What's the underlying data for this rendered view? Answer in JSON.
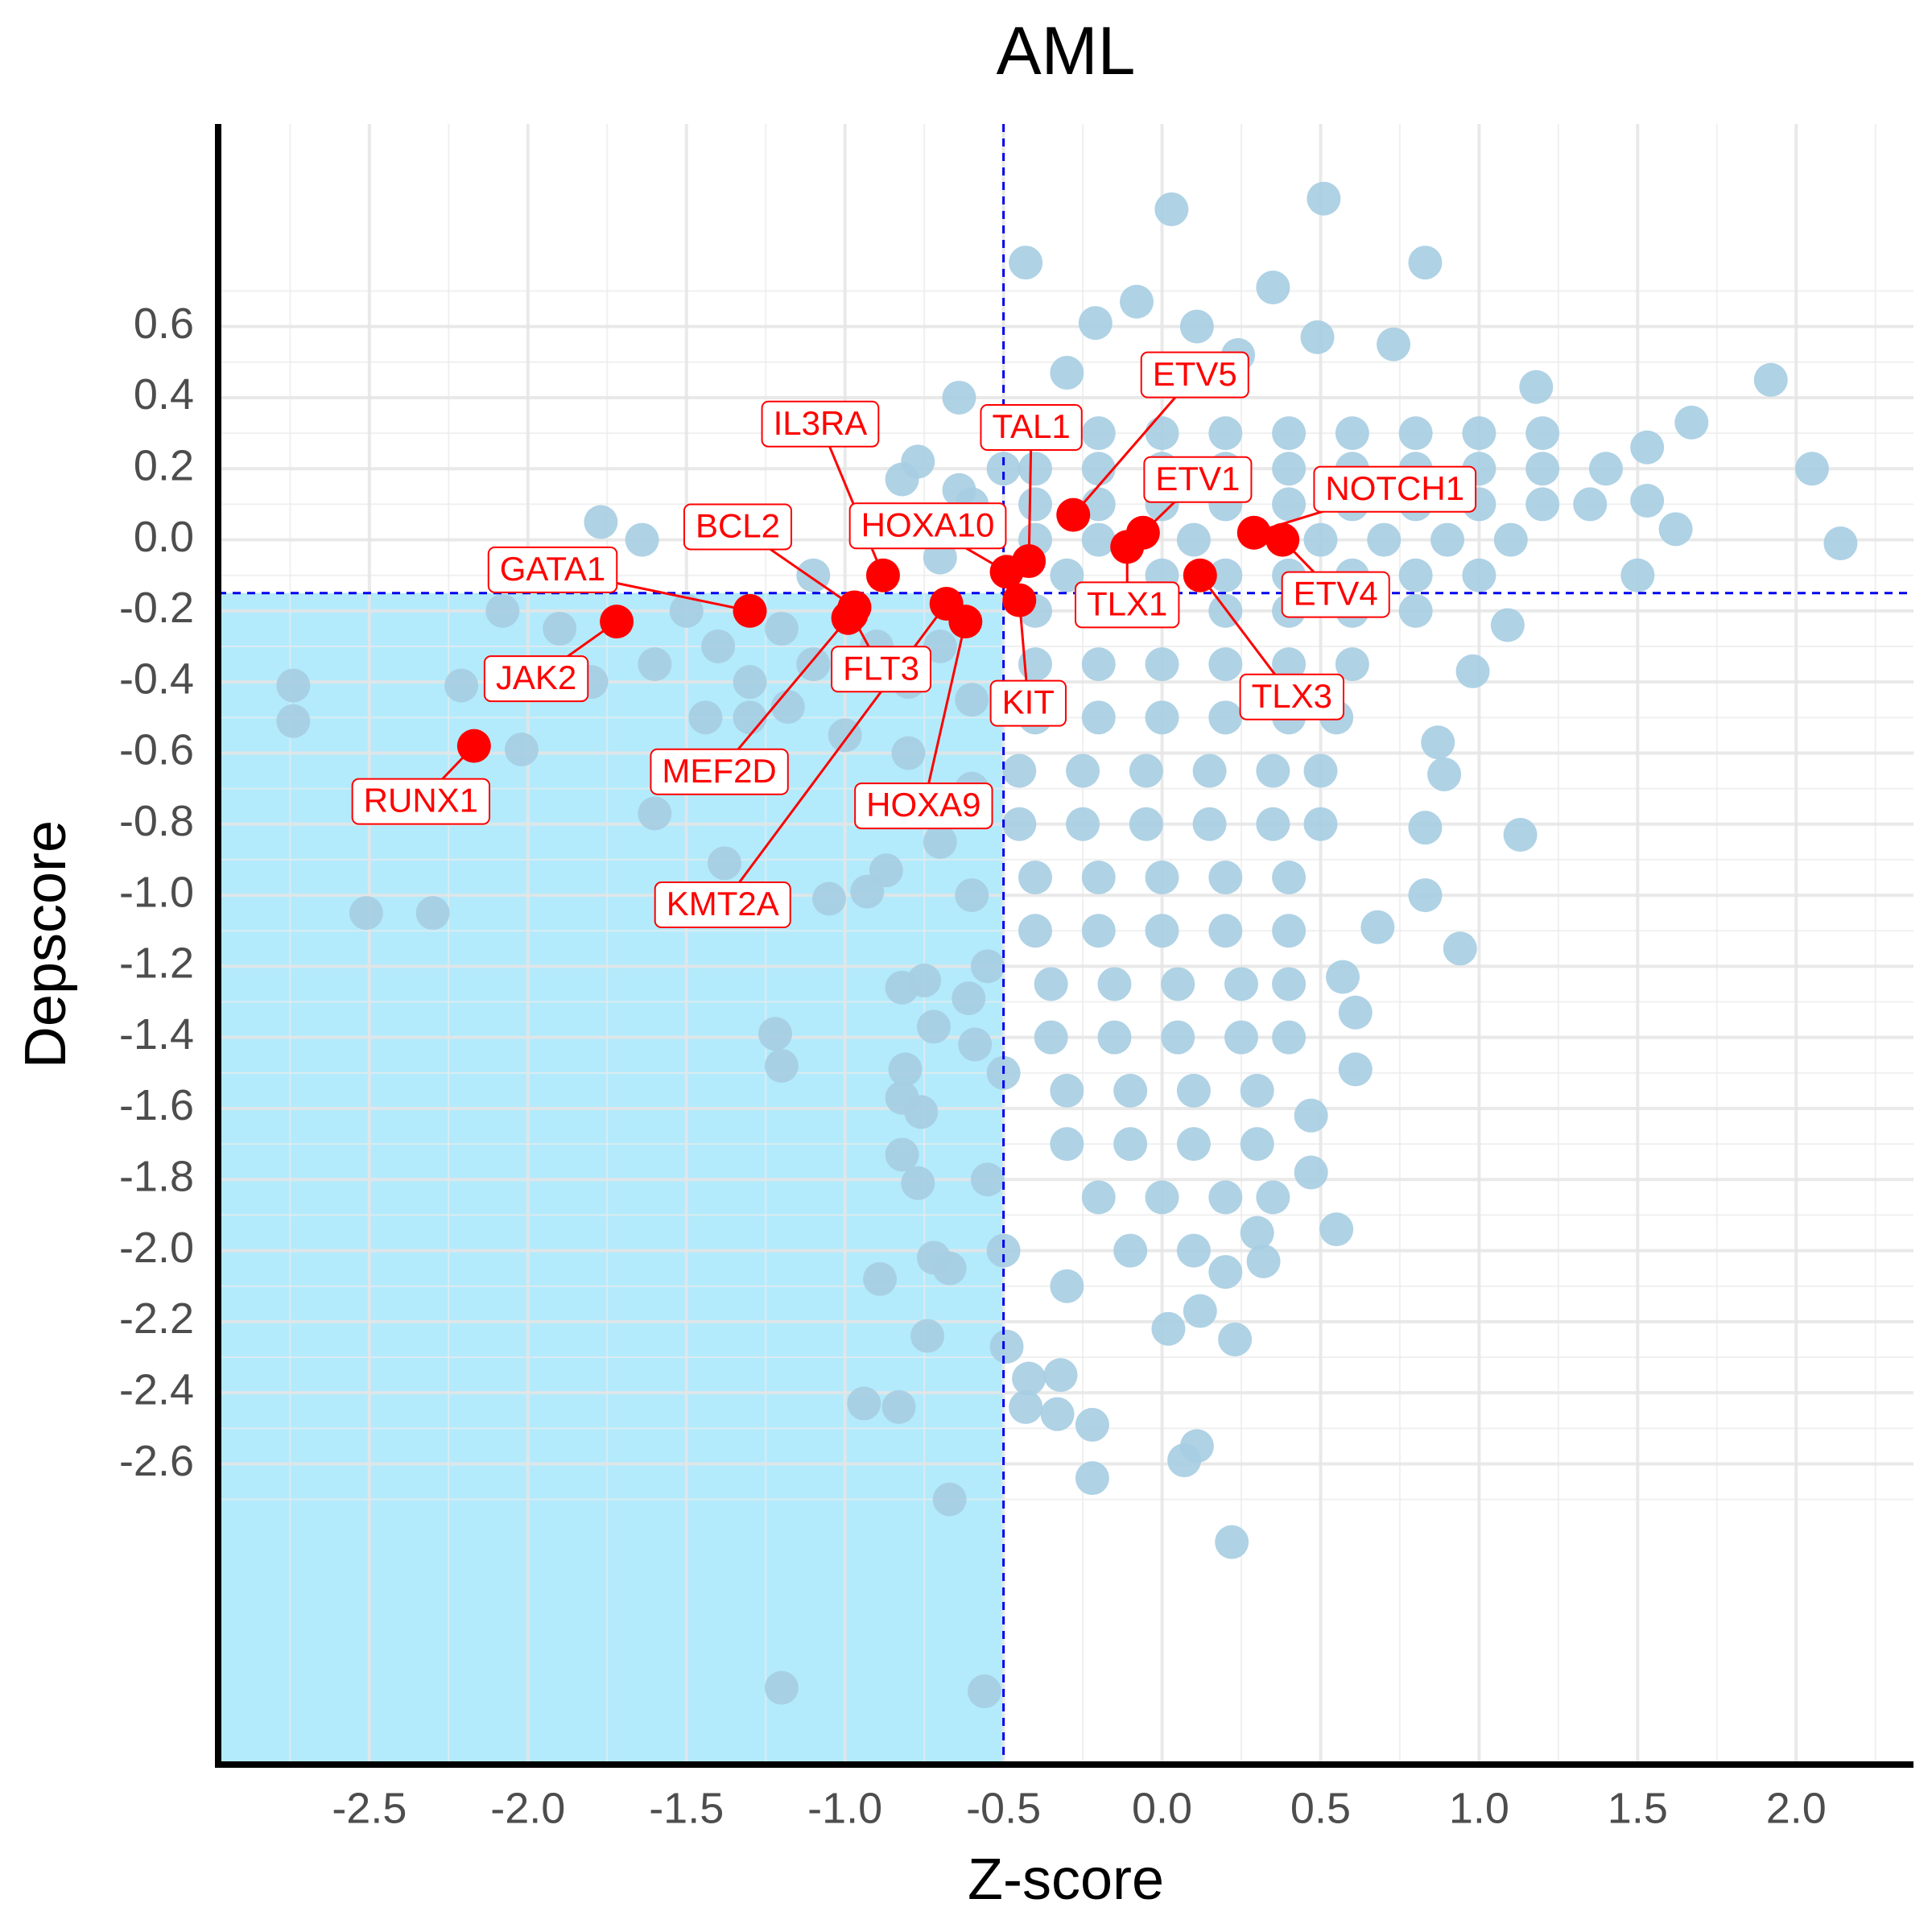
{
  "chart_data": {
    "type": "scatter",
    "title": "AML",
    "x_label": "Z-score",
    "y_label": "Depscore",
    "xlim": [
      -2.977,
      2.37
    ],
    "ylim": [
      -3.446,
      1.17
    ],
    "xticks": [
      -2.5,
      {
        "value": -2,
        "label": "-2.0"
      },
      -1.5,
      {
        "value": -1,
        "label": "-1.0"
      },
      -0.5,
      {
        "value": 0,
        "label": "0.0"
      },
      0.5,
      {
        "value": 1,
        "label": "1.0"
      },
      1.5,
      {
        "value": 2,
        "label": "2.0"
      }
    ],
    "yticks": [
      0.6,
      0.4,
      0.2,
      {
        "value": 0,
        "label": "0.0"
      },
      -0.2,
      -0.4,
      -0.6,
      -0.8,
      {
        "value": -1,
        "label": "-1.0"
      },
      -1.2,
      -1.4,
      -1.6,
      -1.8,
      {
        "value": -2,
        "label": "-2.0"
      },
      -2.2,
      -2.4,
      -2.6
    ],
    "grid": true,
    "threshold_x": -0.5,
    "threshold_y": -0.15,
    "threshold_color": "#0000ee",
    "shade_color": "#b3ebfc",
    "points": {
      "color": "#a6cde2",
      "x": [
        0.03,
        0.51,
        -0.43,
        0.83,
        0.35,
        -0.08,
        -0.21,
        0.11,
        0.49,
        0.73,
        -0.3,
        0.24,
        -0.64,
        1.18,
        1.92,
        1.67,
        2.05,
        2.14,
        1.53,
        1.53,
        1.62,
        1.5,
        1.09,
        0.98,
        0.87,
        0.89,
        1.13,
        0.83,
        0.83,
        0.94,
        0.68,
        0.57,
        0.61,
        0.61,
        0.47,
        0.47,
        0.55,
        0.32,
        0.2,
        0.12,
        0.02,
        0.23,
        0.11,
        0.07,
        0.22,
        -0.22,
        -0.22,
        -0.32,
        -0.33,
        -0.43,
        -0.42,
        -0.49,
        -0.56,
        -1.2,
        -0.67,
        -0.83,
        -0.94,
        -0.74,
        -0.67,
        -0.89,
        -0.72,
        -0.77,
        -0.82,
        -0.76,
        -0.82,
        -0.81,
        -0.72,
        -0.82,
        -0.75,
        -0.61,
        -0.59,
        -1.2,
        -1.22,
        -1.05,
        -0.93,
        -0.87,
        -1.38,
        -1.6,
        -2.02,
        -2.3,
        -2.51,
        -2.74,
        -2.74,
        -2.21,
        -2.08,
        -1.77,
        -1.64,
        -1.44,
        -1.3,
        -1.18,
        -0.77,
        -0.82,
        -0.64,
        -0.5,
        -1.4,
        -1.2,
        -1.1,
        -0.9,
        -0.8,
        -0.7,
        -0.6,
        -1.3,
        -1.0,
        -0.8,
        -0.6,
        -0.9,
        -0.7,
        -0.6,
        -1.6,
        -1.8,
        -1.9,
        -1.5,
        -1.1,
        -0.8,
        -0.6,
        -0.7,
        -0.55,
        -0.5,
        -0.55,
        -0.5,
        -0.3,
        -0.1,
        0.1,
        0.3,
        -0.2,
        0,
        0.2,
        0.4,
        0.6,
        0.8,
        1,
        1.2,
        -0.4,
        -0.2,
        0,
        0.2,
        0.4,
        0.6,
        0.8,
        1,
        1.2,
        1.4,
        -0.4,
        -0.2,
        0,
        0.2,
        0.4,
        0.6,
        0.8,
        1,
        1.2,
        1.35,
        -0.4,
        -0.2,
        0.1,
        0.5,
        0.7,
        0.9,
        1.1,
        -0.3,
        0,
        0.2,
        0.4,
        0.6,
        0.8,
        1,
        -0.4,
        -0.2,
        0,
        0.2,
        0.4,
        0.6,
        0.8,
        -0.4,
        -0.2,
        0,
        0.2,
        0.4,
        0.6,
        -0.4,
        -0.2,
        0,
        0.2,
        0.4,
        0.55,
        -0.45,
        -0.25,
        -0.05,
        0.15,
        0.35,
        0.5,
        -0.45,
        -0.25,
        -0.05,
        0.15,
        0.35,
        0.5,
        -0.4,
        -0.2,
        0,
        0.2,
        0.4,
        -0.4,
        -0.2,
        0,
        0.2,
        0.4,
        -0.35,
        -0.15,
        0.05,
        0.25,
        0.4,
        -0.35,
        -0.15,
        0.05,
        0.25,
        0.4,
        -0.3,
        -0.1,
        0.1,
        0.3,
        -0.3,
        -0.1,
        0.1,
        0.3,
        -0.2,
        0,
        0.2,
        0.35
      ],
      "y": [
        0.93,
        0.96,
        0.78,
        0.78,
        0.71,
        0.67,
        0.61,
        0.6,
        0.57,
        0.55,
        0.47,
        0.52,
        0.4,
        0.43,
        0.45,
        0.33,
        0.2,
        -0.01,
        0.26,
        0.11,
        0.03,
        -0.1,
        -0.24,
        -0.37,
        -0.57,
        -0.66,
        -0.83,
        -0.81,
        -1.0,
        -1.15,
        -1.09,
        -1.23,
        -1.33,
        -1.49,
        -1.62,
        -1.78,
        -1.94,
        -2.03,
        -2.06,
        -2.17,
        -2.22,
        -2.25,
        -2.55,
        -2.59,
        -2.82,
        -2.49,
        -2.64,
        -2.35,
        -2.46,
        -2.44,
        -2.36,
        -2.27,
        -3.24,
        -3.23,
        -2.7,
        -2.44,
        -2.43,
        -2.24,
        -2.05,
        -2.08,
        -2.02,
        -1.81,
        -1.73,
        -1.61,
        -1.57,
        -1.49,
        -1.37,
        -1.26,
        -1.24,
        -1.29,
        -1.42,
        -1.48,
        -1.39,
        -1.01,
        -0.99,
        -0.93,
        -0.91,
        -0.77,
        -0.59,
        -1.05,
        -1.05,
        -0.41,
        -0.51,
        -0.41,
        -0.2,
        0.05,
        0.0,
        -0.5,
        -0.5,
        -0.47,
        0.22,
        0.17,
        0.14,
        0.2,
        -0.3,
        -0.25,
        -0.35,
        -0.3,
        -0.4,
        -0.3,
        -0.45,
        -0.4,
        -0.55,
        -0.6,
        -0.7,
        -0.75,
        -0.85,
        -1.0,
        -0.35,
        -0.4,
        -0.25,
        -0.2,
        -0.1,
        0.05,
        0.1,
        -0.05,
        -1.2,
        -1.5,
        -1.8,
        -2.0,
        -2.1,
        -2.0,
        -2.0,
        -1.95,
        0.3,
        0.3,
        0.3,
        0.3,
        0.3,
        0.3,
        0.3,
        0.3,
        0.2,
        0.2,
        0.2,
        0.2,
        0.2,
        0.2,
        0.2,
        0.2,
        0.2,
        0.2,
        0.1,
        0.1,
        0.1,
        0.1,
        0.1,
        0.1,
        0.1,
        0.1,
        0.1,
        0.1,
        0,
        0,
        0,
        0,
        0,
        0,
        0,
        -0.1,
        -0.1,
        -0.1,
        -0.1,
        -0.1,
        -0.1,
        -0.1,
        -0.2,
        -0.2,
        -0.2,
        -0.2,
        -0.2,
        -0.2,
        -0.2,
        -0.35,
        -0.35,
        -0.35,
        -0.35,
        -0.35,
        -0.35,
        -0.5,
        -0.5,
        -0.5,
        -0.5,
        -0.5,
        -0.5,
        -0.65,
        -0.65,
        -0.65,
        -0.65,
        -0.65,
        -0.65,
        -0.8,
        -0.8,
        -0.8,
        -0.8,
        -0.8,
        -0.8,
        -0.95,
        -0.95,
        -0.95,
        -0.95,
        -0.95,
        -1.1,
        -1.1,
        -1.1,
        -1.1,
        -1.1,
        -1.25,
        -1.25,
        -1.25,
        -1.25,
        -1.25,
        -1.4,
        -1.4,
        -1.4,
        -1.4,
        -1.4,
        -1.55,
        -1.55,
        -1.55,
        -1.55,
        -1.7,
        -1.7,
        -1.7,
        -1.7,
        -1.85,
        -1.85,
        -1.85,
        -1.85
      ]
    },
    "highlight": {
      "color": "#ff0000",
      "labels": [
        "RUNX1",
        "JAK2",
        "GATA1",
        "BCL2",
        "FLT3",
        "IL3RA",
        "HOXA10",
        "MEF2D",
        "HOXA9",
        "KMT2A",
        "TAL1",
        "KIT",
        "ETV5",
        "ETV1",
        "TLX1",
        "TLX3",
        "NOTCH1",
        "ETV4"
      ],
      "x": [
        -2.17,
        -1.72,
        -1.3,
        -0.97,
        -0.98,
        -0.88,
        -0.49,
        -0.99,
        -0.62,
        -0.68,
        -0.42,
        -0.45,
        -0.28,
        -0.06,
        -0.11,
        0.12,
        0.29,
        0.38
      ],
      "y": [
        -0.58,
        -0.23,
        -0.2,
        -0.19,
        -0.21,
        -0.1,
        -0.09,
        -0.22,
        -0.23,
        -0.18,
        -0.06,
        -0.17,
        0.07,
        0.02,
        -0.02,
        -0.1,
        0.02,
        0.0
      ]
    }
  }
}
